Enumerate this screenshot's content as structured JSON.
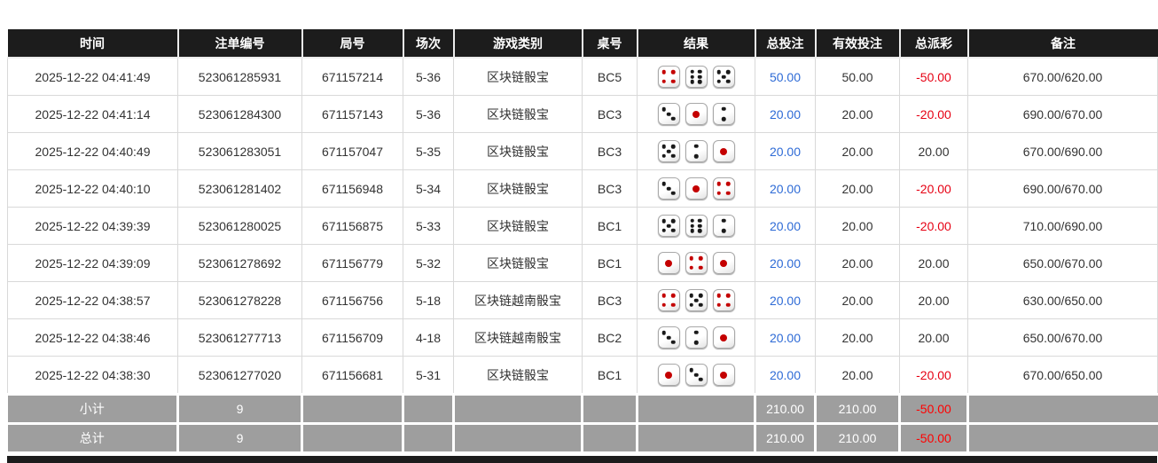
{
  "colors": {
    "header_bg": "#1c1c1c",
    "footer_bg": "#9e9e9e",
    "bet_blue": "#2e6bd6",
    "loss_red": "#e60013",
    "body_text": "#333333",
    "grid_border": "#d9d9d9",
    "pip_black": "#1a1a1a",
    "pip_red": "#c40000"
  },
  "table": {
    "columns": [
      {
        "key": "time",
        "label": "时间"
      },
      {
        "key": "bet_id",
        "label": "注单编号"
      },
      {
        "key": "round_id",
        "label": "局号"
      },
      {
        "key": "session",
        "label": "场次"
      },
      {
        "key": "game_type",
        "label": "游戏类别"
      },
      {
        "key": "table_no",
        "label": "桌号"
      },
      {
        "key": "result",
        "label": "结果"
      },
      {
        "key": "total_bet",
        "label": "总投注"
      },
      {
        "key": "valid_bet",
        "label": "有效投注"
      },
      {
        "key": "total_payout",
        "label": "总派彩"
      },
      {
        "key": "remark",
        "label": "备注"
      }
    ],
    "rows": [
      {
        "time": "2025-12-22 04:41:49",
        "bet_id": "523061285931",
        "round_id": "671157214",
        "session": "5-36",
        "game_type": "区块链骰宝",
        "table_no": "BC5",
        "dice": [
          4,
          6,
          5
        ],
        "total_bet": "50.00",
        "valid_bet": "50.00",
        "total_payout": "-50.00",
        "payout_negative": true,
        "remark": "670.00/620.00"
      },
      {
        "time": "2025-12-22 04:41:14",
        "bet_id": "523061284300",
        "round_id": "671157143",
        "session": "5-36",
        "game_type": "区块链骰宝",
        "table_no": "BC3",
        "dice": [
          3,
          1,
          2
        ],
        "total_bet": "20.00",
        "valid_bet": "20.00",
        "total_payout": "-20.00",
        "payout_negative": true,
        "remark": "690.00/670.00"
      },
      {
        "time": "2025-12-22 04:40:49",
        "bet_id": "523061283051",
        "round_id": "671157047",
        "session": "5-35",
        "game_type": "区块链骰宝",
        "table_no": "BC3",
        "dice": [
          5,
          2,
          1
        ],
        "total_bet": "20.00",
        "valid_bet": "20.00",
        "total_payout": "20.00",
        "payout_negative": false,
        "remark": "670.00/690.00"
      },
      {
        "time": "2025-12-22 04:40:10",
        "bet_id": "523061281402",
        "round_id": "671156948",
        "session": "5-34",
        "game_type": "区块链骰宝",
        "table_no": "BC3",
        "dice": [
          3,
          1,
          4
        ],
        "total_bet": "20.00",
        "valid_bet": "20.00",
        "total_payout": "-20.00",
        "payout_negative": true,
        "remark": "690.00/670.00"
      },
      {
        "time": "2025-12-22 04:39:39",
        "bet_id": "523061280025",
        "round_id": "671156875",
        "session": "5-33",
        "game_type": "区块链骰宝",
        "table_no": "BC1",
        "dice": [
          5,
          6,
          2
        ],
        "total_bet": "20.00",
        "valid_bet": "20.00",
        "total_payout": "-20.00",
        "payout_negative": true,
        "remark": "710.00/690.00"
      },
      {
        "time": "2025-12-22 04:39:09",
        "bet_id": "523061278692",
        "round_id": "671156779",
        "session": "5-32",
        "game_type": "区块链骰宝",
        "table_no": "BC1",
        "dice": [
          1,
          4,
          1
        ],
        "total_bet": "20.00",
        "valid_bet": "20.00",
        "total_payout": "20.00",
        "payout_negative": false,
        "remark": "650.00/670.00"
      },
      {
        "time": "2025-12-22 04:38:57",
        "bet_id": "523061278228",
        "round_id": "671156756",
        "session": "5-18",
        "game_type": "区块链越南骰宝",
        "table_no": "BC3",
        "dice": [
          4,
          5,
          4
        ],
        "total_bet": "20.00",
        "valid_bet": "20.00",
        "total_payout": "20.00",
        "payout_negative": false,
        "remark": "630.00/650.00"
      },
      {
        "time": "2025-12-22 04:38:46",
        "bet_id": "523061277713",
        "round_id": "671156709",
        "session": "4-18",
        "game_type": "区块链越南骰宝",
        "table_no": "BC2",
        "dice": [
          3,
          2,
          1
        ],
        "total_bet": "20.00",
        "valid_bet": "20.00",
        "total_payout": "20.00",
        "payout_negative": false,
        "remark": "650.00/670.00"
      },
      {
        "time": "2025-12-22 04:38:30",
        "bet_id": "523061277020",
        "round_id": "671156681",
        "session": "5-31",
        "game_type": "区块链骰宝",
        "table_no": "BC1",
        "dice": [
          1,
          3,
          1
        ],
        "total_bet": "20.00",
        "valid_bet": "20.00",
        "total_payout": "-20.00",
        "payout_negative": true,
        "remark": "670.00/650.00"
      }
    ],
    "footer_rows": [
      {
        "label": "小计",
        "count": "9",
        "total_bet": "210.00",
        "valid_bet": "210.00",
        "total_payout": "-50.00",
        "payout_negative": true
      },
      {
        "label": "总计",
        "count": "9",
        "total_bet": "210.00",
        "valid_bet": "210.00",
        "total_payout": "-50.00",
        "payout_negative": true
      }
    ]
  }
}
